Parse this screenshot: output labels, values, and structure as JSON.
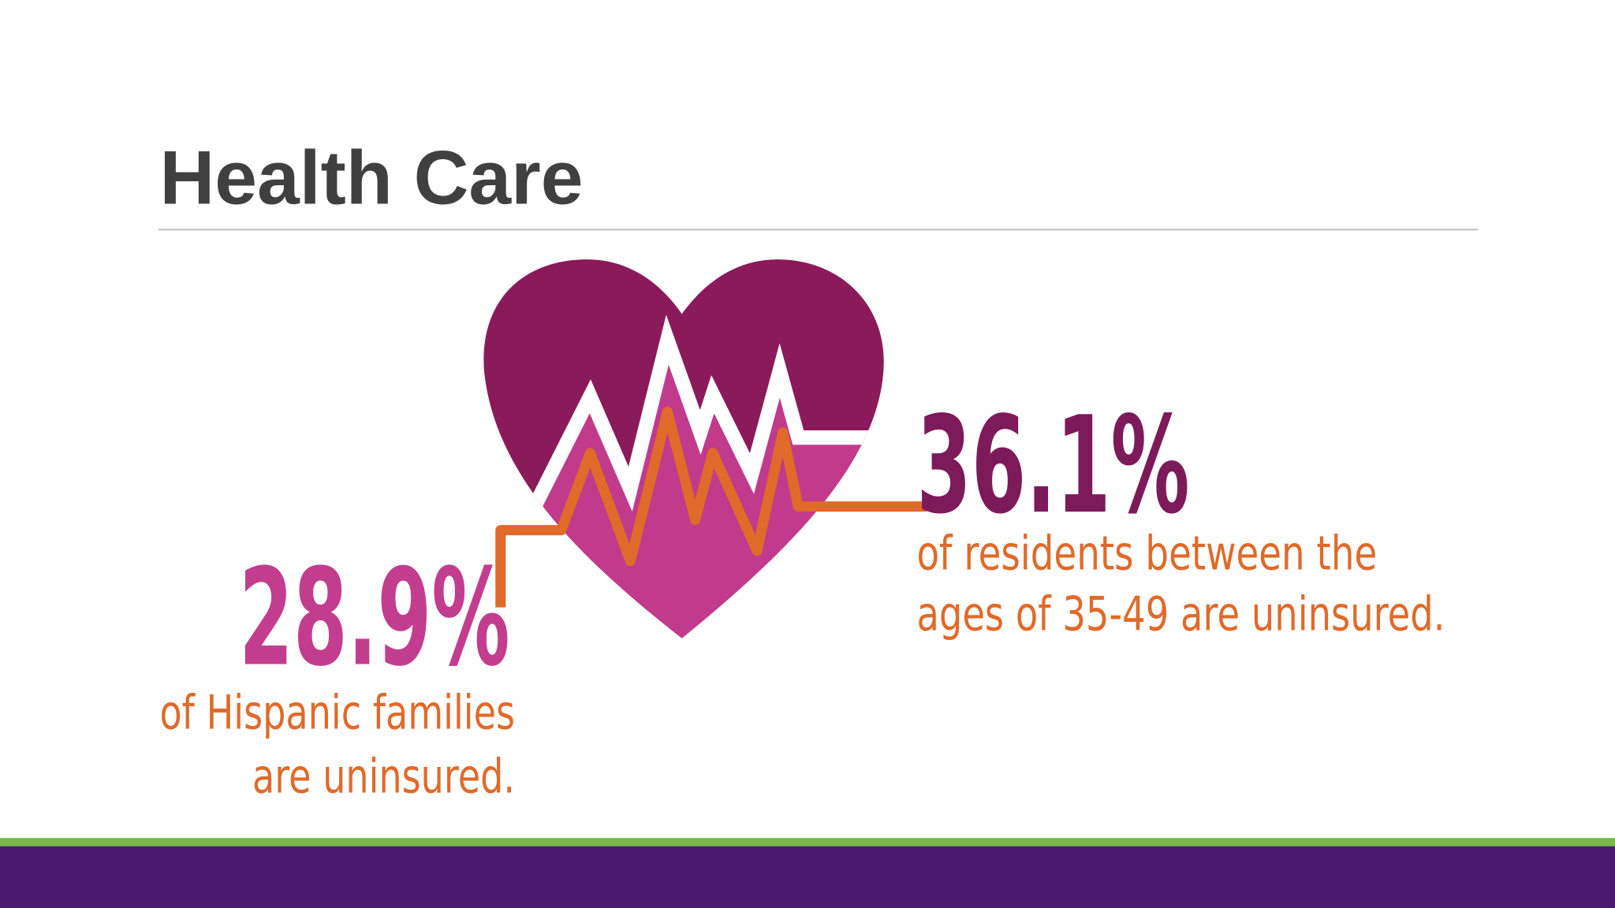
{
  "header": {
    "title": "Health Care"
  },
  "stats": [
    {
      "figure": "28.9%",
      "lines": [
        "of Hispanic families",
        "are uninsured."
      ]
    },
    {
      "figure": "36.1%",
      "lines": [
        "of residents between the",
        "ages of 35-49 are uninsured."
      ]
    }
  ]
}
